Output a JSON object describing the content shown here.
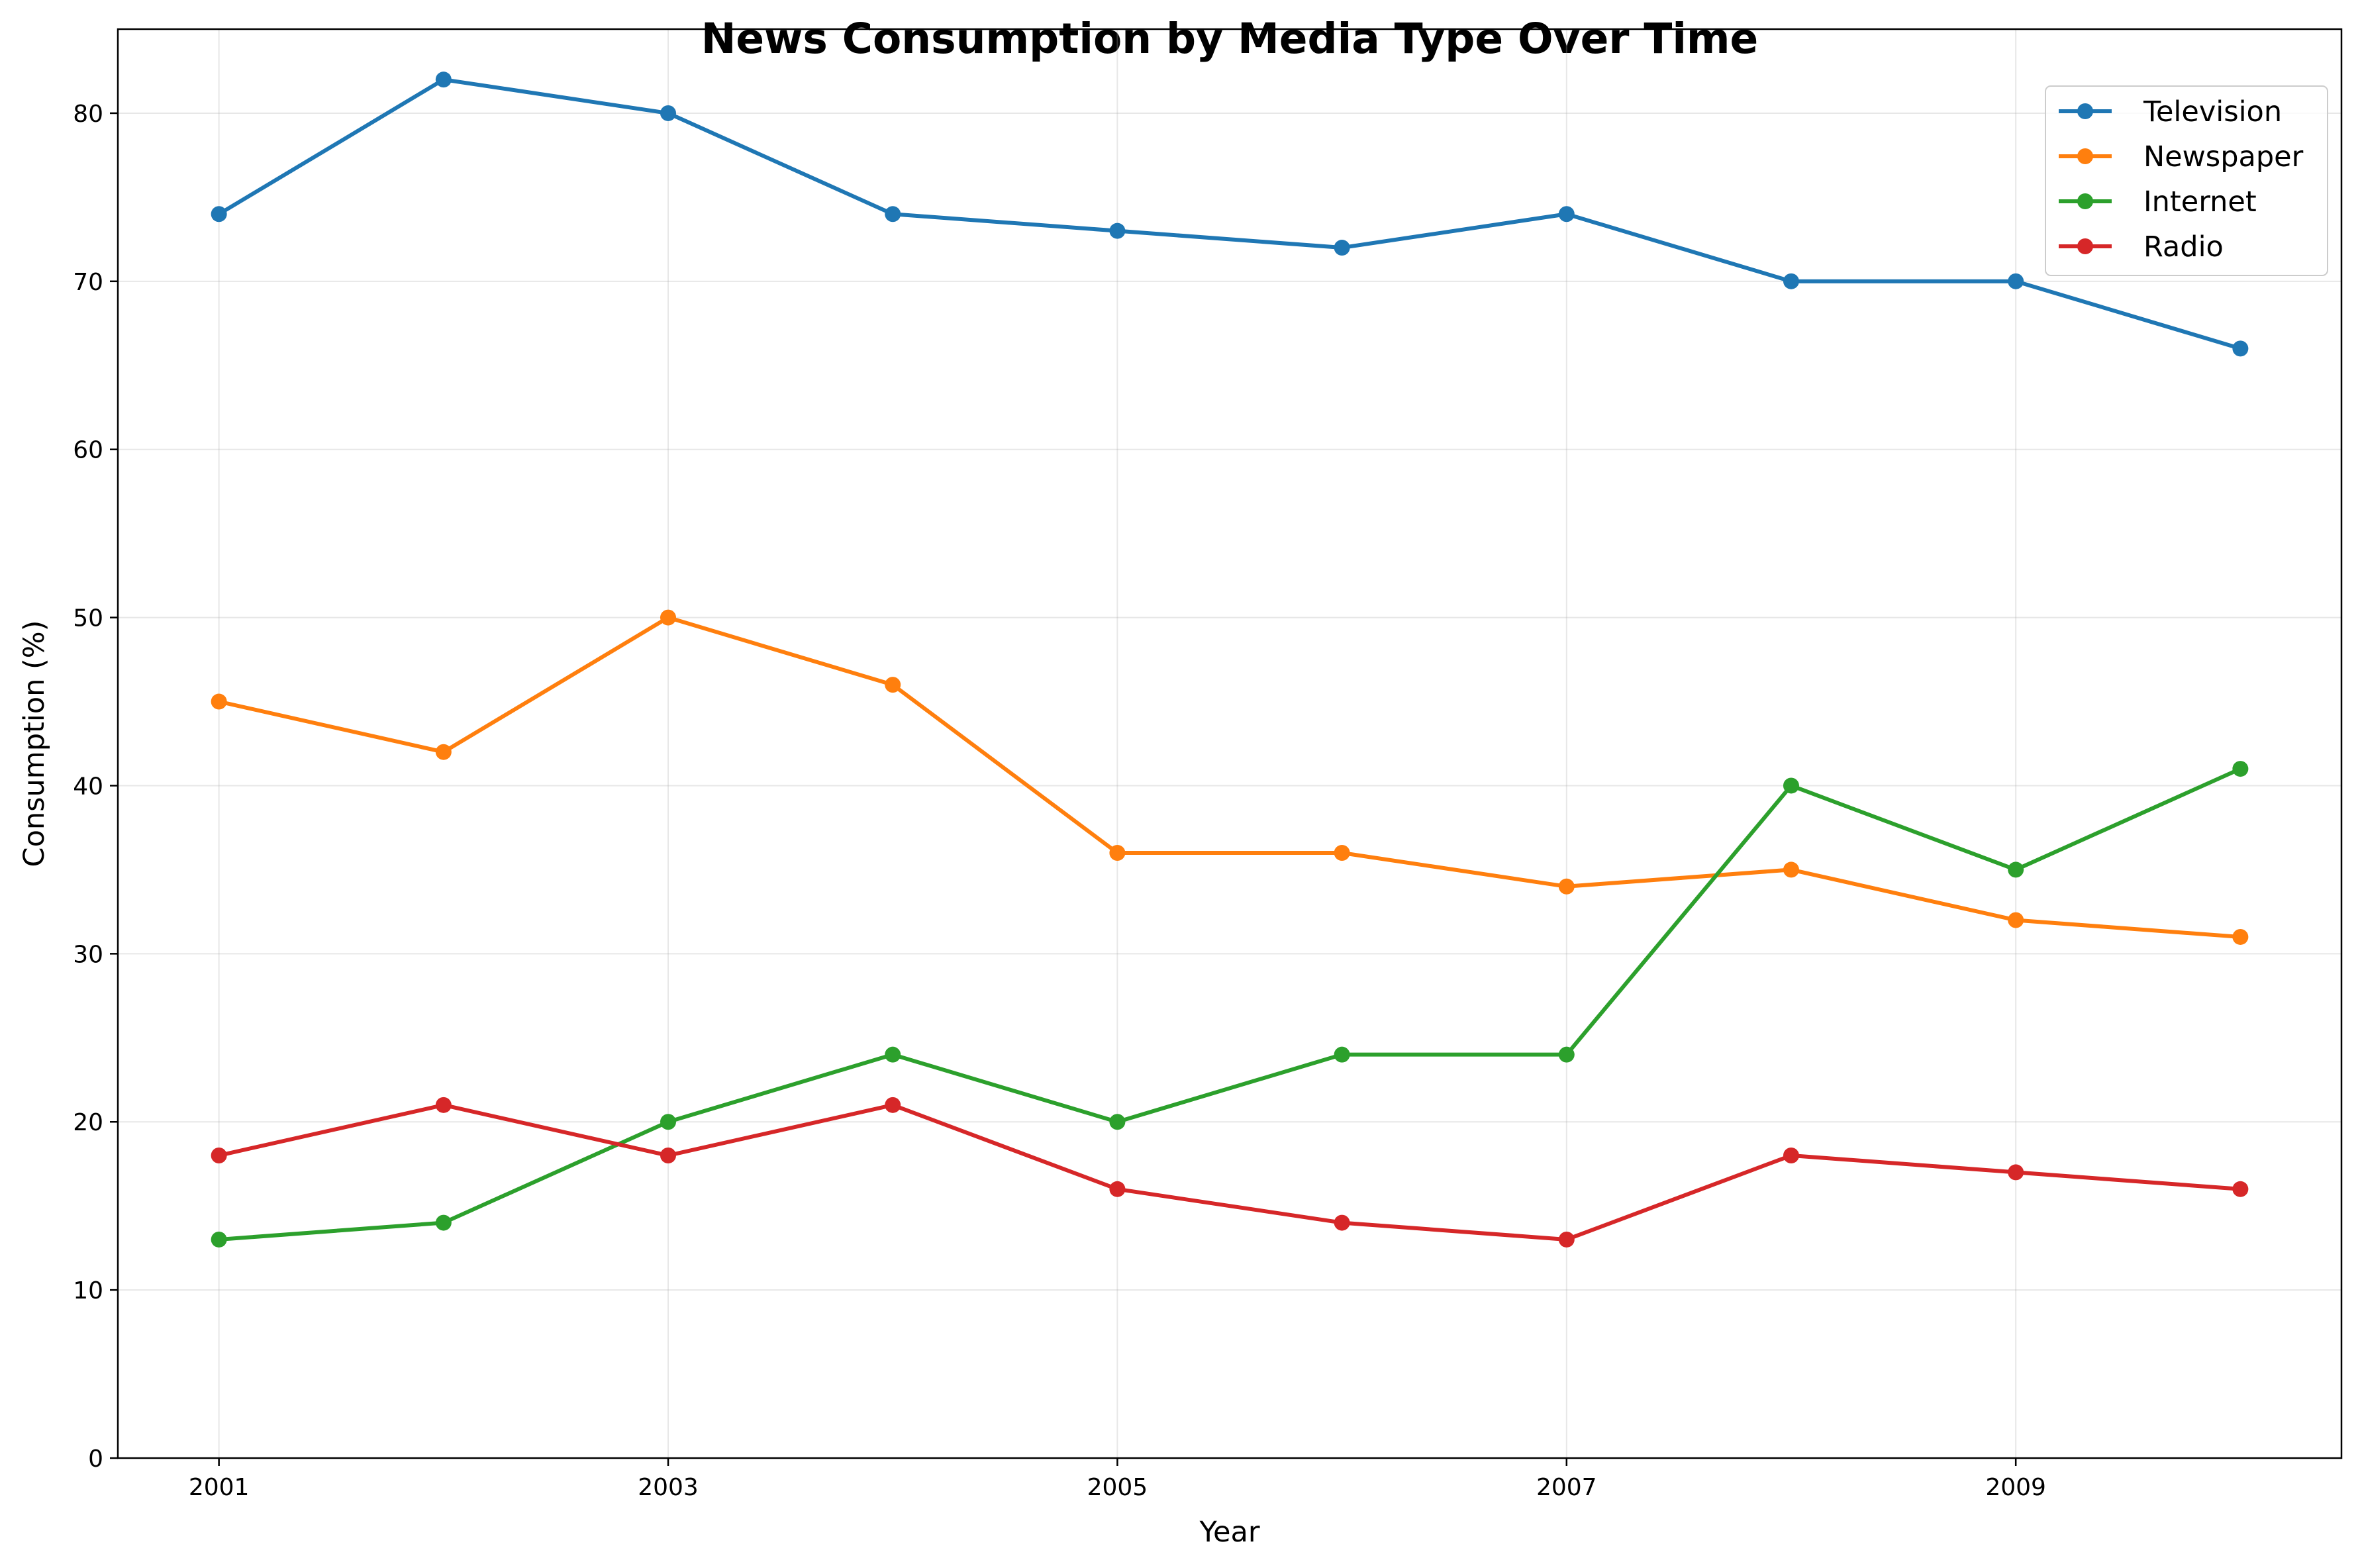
{
  "chart_data": {
    "type": "line",
    "title": "News Consumption by Media Type Over Time",
    "xlabel": "Year",
    "ylabel": "Consumption (%)",
    "x": [
      2001,
      2002,
      2003,
      2004,
      2005,
      2006,
      2007,
      2008,
      2009,
      2010
    ],
    "xlim": [
      2000.55,
      2010.45
    ],
    "ylim": [
      0,
      85
    ],
    "x_ticks": [
      2001,
      2003,
      2005,
      2007,
      2009
    ],
    "y_ticks": [
      0,
      10,
      20,
      30,
      40,
      50,
      60,
      70,
      80
    ],
    "grid": true,
    "legend_position": "top-right",
    "series": [
      {
        "name": "Television",
        "color": "#1f77b4",
        "values": [
          74,
          82,
          80,
          74,
          73,
          72,
          74,
          70,
          70,
          66
        ]
      },
      {
        "name": "Newspaper",
        "color": "#ff7f0e",
        "values": [
          45,
          42,
          50,
          46,
          36,
          36,
          34,
          35,
          32,
          31
        ]
      },
      {
        "name": "Internet",
        "color": "#2ca02c",
        "values": [
          13,
          14,
          20,
          24,
          20,
          24,
          24,
          40,
          35,
          41
        ]
      },
      {
        "name": "Radio",
        "color": "#d62728",
        "values": [
          18,
          21,
          18,
          21,
          16,
          14,
          13,
          18,
          17,
          16
        ]
      }
    ]
  }
}
